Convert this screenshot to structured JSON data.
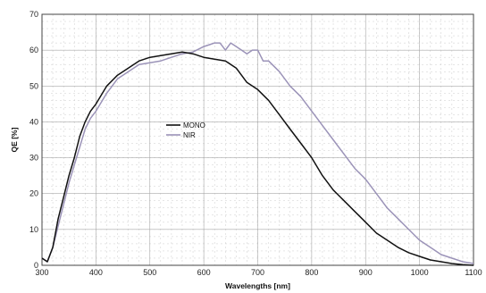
{
  "chart_data": {
    "type": "line",
    "xlabel": "Wavelengths [nm]",
    "ylabel": "QE [%]",
    "xlim": [
      300,
      1100
    ],
    "ylim": [
      0,
      70
    ],
    "x_ticks": [
      300,
      400,
      500,
      600,
      700,
      800,
      900,
      1000,
      1100
    ],
    "y_ticks": [
      0,
      10,
      20,
      30,
      40,
      50,
      60,
      70
    ],
    "grid": true,
    "legend_position": "center",
    "series": [
      {
        "name": "MONO",
        "color": "#111111",
        "x": [
          300,
          310,
          320,
          330,
          340,
          350,
          360,
          370,
          380,
          390,
          400,
          420,
          440,
          460,
          480,
          500,
          520,
          540,
          560,
          580,
          600,
          620,
          640,
          660,
          680,
          700,
          720,
          740,
          760,
          780,
          800,
          820,
          840,
          860,
          880,
          900,
          920,
          940,
          960,
          980,
          1000,
          1020,
          1040,
          1060,
          1080,
          1100
        ],
        "y": [
          2,
          1,
          5,
          13,
          19,
          25,
          30,
          36,
          40,
          43,
          45,
          50,
          53,
          55,
          57,
          58,
          58.5,
          59,
          59.5,
          59,
          58,
          57.5,
          57,
          55,
          51,
          49,
          46,
          42,
          38,
          34,
          30,
          25,
          21,
          18,
          15,
          12,
          9,
          7,
          5,
          3.5,
          2.5,
          1.5,
          1,
          0.5,
          0.2,
          0
        ]
      },
      {
        "name": "NIR",
        "color": "#9b93b8",
        "x": [
          300,
          310,
          320,
          330,
          340,
          350,
          360,
          370,
          380,
          390,
          400,
          420,
          440,
          460,
          480,
          500,
          520,
          540,
          560,
          580,
          600,
          610,
          620,
          630,
          640,
          650,
          660,
          670,
          680,
          690,
          700,
          710,
          720,
          740,
          760,
          780,
          800,
          820,
          840,
          860,
          880,
          900,
          920,
          940,
          960,
          980,
          1000,
          1020,
          1040,
          1060,
          1080,
          1100
        ],
        "y": [
          2,
          1,
          5,
          11,
          17,
          23,
          28,
          33,
          38,
          41,
          43,
          48,
          52,
          54,
          56,
          56.5,
          57,
          58,
          59,
          59.5,
          61,
          61.5,
          62,
          62,
          60,
          62,
          61,
          60,
          59,
          60,
          60,
          57,
          57,
          54,
          50,
          47,
          43,
          39,
          35,
          31,
          27,
          24,
          20,
          16,
          13,
          10,
          7,
          5,
          3,
          2,
          1,
          0.5
        ]
      }
    ]
  }
}
